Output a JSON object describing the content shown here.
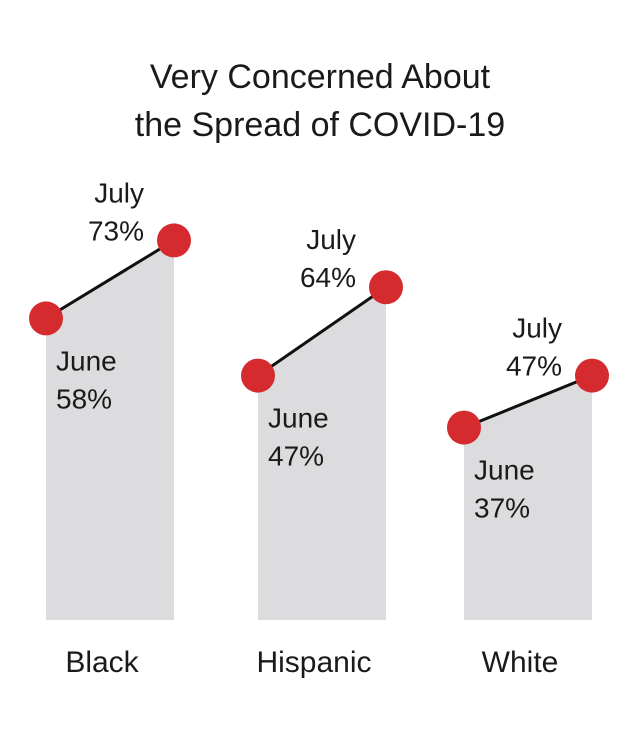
{
  "chart_data": {
    "type": "slope-area",
    "title_lines": [
      "Very Concerned About",
      "the Spread of COVID-19"
    ],
    "categories": [
      "Black",
      "Hispanic",
      "White"
    ],
    "series": [
      {
        "name": "June",
        "label_values": [
          "58%",
          "47%",
          "37%"
        ],
        "values": [
          58,
          47,
          37
        ]
      },
      {
        "name": "July",
        "label_values": [
          "73%",
          "64%",
          "47%"
        ],
        "values": [
          73,
          64,
          47
        ]
      }
    ],
    "ylim": [
      0,
      100
    ],
    "grid": false,
    "colors": {
      "marker": "#d52b2f",
      "area": "#dcdcde",
      "line": "#111111"
    }
  }
}
